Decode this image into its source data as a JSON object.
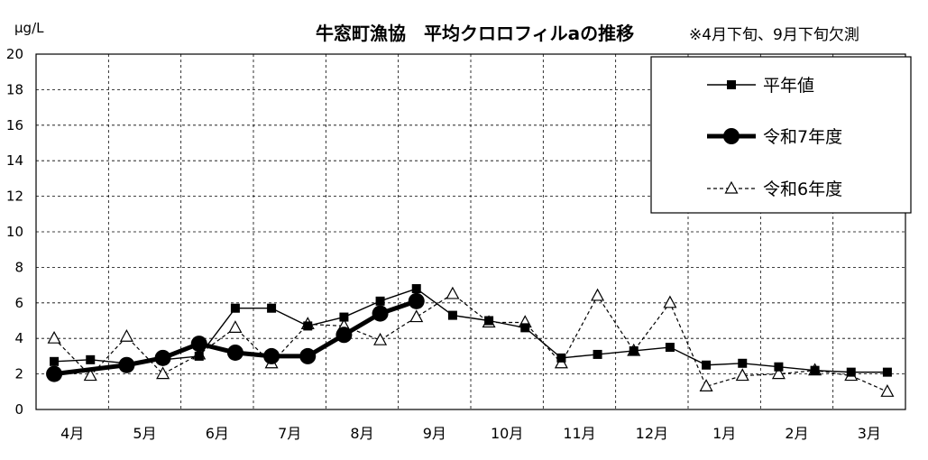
{
  "chart_data": {
    "type": "line",
    "title": "牛窓町漁協　平均クロロフィルaの推移",
    "subtitle": "※4月下旬、9月下旬欠測",
    "ylabel": "μg/L",
    "ylim": [
      0,
      20
    ],
    "yticks": [
      0,
      2,
      4,
      6,
      8,
      10,
      12,
      14,
      16,
      18,
      20
    ],
    "month_labels": [
      "4月",
      "5月",
      "6月",
      "7月",
      "8月",
      "9月",
      "10月",
      "11月",
      "12月",
      "1月",
      "2月",
      "3月"
    ],
    "x": [
      1,
      2,
      3,
      4,
      5,
      6,
      7,
      8,
      9,
      10,
      11,
      12,
      13,
      14,
      15,
      16,
      17,
      18,
      19,
      20,
      21,
      22,
      23,
      24
    ],
    "grid": true,
    "legend_position": "top-right",
    "series": [
      {
        "name": "平年値",
        "style": "solid-thin",
        "marker": "square",
        "color": "#000000",
        "values": [
          2.7,
          2.8,
          2.6,
          2.8,
          3.0,
          5.7,
          5.7,
          4.7,
          5.2,
          6.1,
          6.8,
          5.3,
          5.0,
          4.6,
          2.9,
          3.1,
          3.3,
          3.5,
          2.5,
          2.6,
          2.4,
          2.2,
          2.1,
          2.1
        ]
      },
      {
        "name": "令和7年度",
        "style": "solid-thick",
        "marker": "circle",
        "color": "#000000",
        "values": [
          2.0,
          null,
          2.5,
          2.9,
          3.7,
          3.2,
          3.0,
          3.0,
          4.2,
          5.4,
          6.1,
          null,
          null,
          null,
          null,
          null,
          null,
          null,
          null,
          null,
          null,
          null,
          null,
          null
        ]
      },
      {
        "name": "令和6年度",
        "style": "dashed",
        "marker": "triangle-open",
        "color": "#000000",
        "values": [
          4.0,
          1.9,
          4.1,
          2.0,
          3.1,
          4.6,
          2.6,
          4.8,
          4.7,
          3.9,
          5.2,
          6.5,
          4.9,
          4.9,
          2.6,
          6.4,
          3.3,
          6.0,
          1.3,
          1.9,
          2.0,
          2.2,
          1.9,
          1.0
        ]
      }
    ]
  }
}
